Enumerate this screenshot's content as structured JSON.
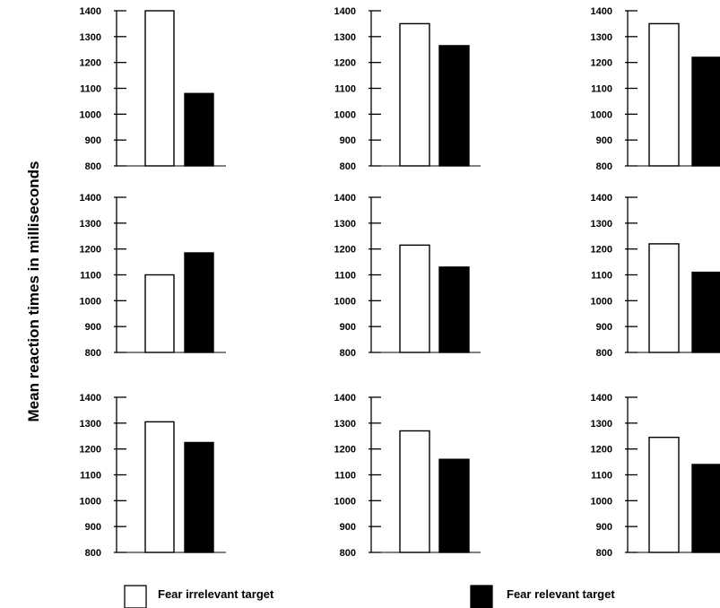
{
  "chart_data": {
    "type": "bar",
    "ylabel": "Mean reaction times in milliseconds",
    "ylim": [
      800,
      1400
    ],
    "yticks": [
      800,
      900,
      1000,
      1100,
      1200,
      1300,
      1400
    ],
    "legend": {
      "placement": "bottom",
      "entries": [
        {
          "name": "Fear irrelevant target",
          "color": "#ffffff"
        },
        {
          "name": "Fear relevant target",
          "color": "#000000"
        }
      ]
    },
    "series": [
      {
        "name": "Fear irrelevant target",
        "color": "#ffffff"
      },
      {
        "name": "Fear relevant target",
        "color": "#000000"
      }
    ],
    "panels": [
      {
        "values": [
          1400,
          1080
        ]
      },
      {
        "values": [
          1350,
          1265
        ]
      },
      {
        "values": [
          1350,
          1220
        ]
      },
      {
        "values": [
          1100,
          1185
        ]
      },
      {
        "values": [
          1215,
          1130
        ]
      },
      {
        "values": [
          1220,
          1110
        ]
      },
      {
        "values": [
          1305,
          1225
        ]
      },
      {
        "values": [
          1270,
          1160
        ]
      },
      {
        "values": [
          1245,
          1140
        ]
      }
    ]
  }
}
